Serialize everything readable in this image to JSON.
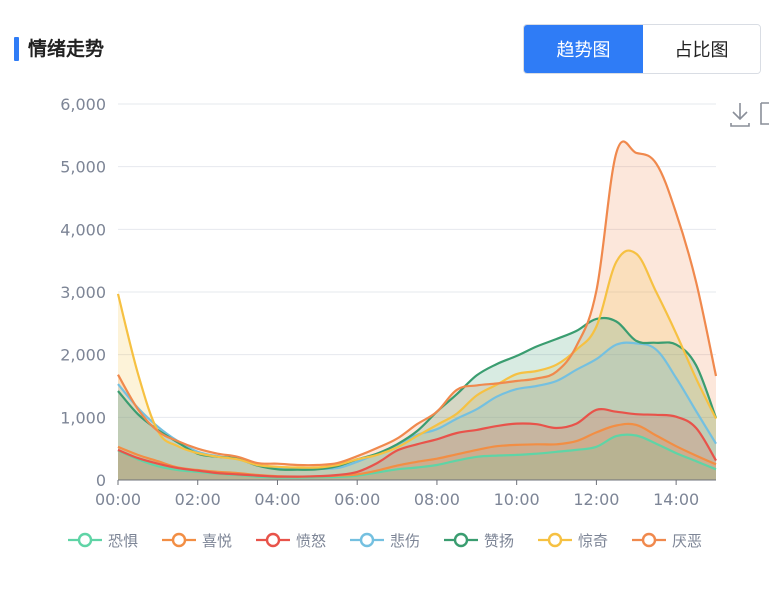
{
  "header": {
    "title": "情绪走势"
  },
  "toggle": {
    "trend_label": "趋势图",
    "ratio_label": "占比图"
  },
  "toolbox": {
    "icons": [
      "download-icon",
      "data-view-icon"
    ]
  },
  "chart_data": {
    "type": "area",
    "x": [
      "00:00",
      "00:30",
      "01:00",
      "01:30",
      "02:00",
      "02:30",
      "03:00",
      "03:30",
      "04:00",
      "04:30",
      "05:00",
      "05:30",
      "06:00",
      "06:30",
      "07:00",
      "07:30",
      "08:00",
      "08:30",
      "09:00",
      "09:30",
      "10:00",
      "10:30",
      "11:00",
      "11:30",
      "12:00",
      "12:30",
      "13:00",
      "13:30",
      "14:00",
      "14:30",
      "15:00"
    ],
    "xticks": [
      "00:00",
      "02:00",
      "04:00",
      "06:00",
      "08:00",
      "10:00",
      "12:00",
      "14:00"
    ],
    "ylim": [
      0,
      6000
    ],
    "yticks": [
      "0",
      "1,000",
      "2,000",
      "3,000",
      "4,000",
      "5,000",
      "6,000"
    ],
    "grid": true,
    "legend_position": "bottom",
    "series": [
      {
        "name": "恐惧",
        "color": "#5fd4a6",
        "values": [
          470,
          330,
          220,
          160,
          130,
          100,
          80,
          55,
          40,
          40,
          45,
          50,
          70,
          120,
          170,
          200,
          240,
          310,
          370,
          390,
          400,
          420,
          450,
          480,
          530,
          700,
          710,
          580,
          430,
          300,
          170
        ]
      },
      {
        "name": "喜悦",
        "color": "#f28e44",
        "values": [
          530,
          400,
          300,
          200,
          160,
          130,
          110,
          80,
          60,
          55,
          60,
          70,
          90,
          150,
          230,
          290,
          340,
          410,
          480,
          540,
          560,
          570,
          570,
          620,
          760,
          870,
          880,
          710,
          540,
          390,
          250
        ]
      },
      {
        "name": "愤怒",
        "color": "#e8534a",
        "values": [
          480,
          350,
          260,
          190,
          150,
          110,
          90,
          70,
          55,
          55,
          60,
          80,
          130,
          270,
          470,
          570,
          650,
          750,
          800,
          860,
          900,
          890,
          830,
          900,
          1120,
          1090,
          1050,
          1040,
          1010,
          830,
          310
        ]
      },
      {
        "name": "悲伤",
        "color": "#74c0e0",
        "values": [
          1530,
          1150,
          850,
          620,
          450,
          380,
          330,
          240,
          180,
          170,
          180,
          190,
          290,
          420,
          560,
          720,
          810,
          980,
          1130,
          1330,
          1450,
          1500,
          1580,
          1760,
          1930,
          2160,
          2180,
          2080,
          1630,
          1100,
          580
        ]
      },
      {
        "name": "赞扬",
        "color": "#3a9d70",
        "values": [
          1420,
          1050,
          800,
          600,
          420,
          370,
          340,
          230,
          170,
          165,
          170,
          220,
          330,
          420,
          570,
          780,
          1090,
          1370,
          1670,
          1850,
          1980,
          2130,
          2250,
          2380,
          2570,
          2530,
          2220,
          2190,
          2160,
          1830,
          990
        ]
      },
      {
        "name": "惊奇",
        "color": "#f6c142",
        "values": [
          2970,
          1700,
          780,
          540,
          430,
          370,
          330,
          240,
          210,
          200,
          200,
          240,
          330,
          400,
          520,
          700,
          880,
          1060,
          1350,
          1520,
          1690,
          1740,
          1840,
          2080,
          2450,
          3480,
          3610,
          3000,
          2340,
          1620,
          980
        ]
      },
      {
        "name": "厌恶",
        "color": "#f0894d",
        "values": [
          1680,
          1130,
          780,
          620,
          500,
          420,
          370,
          270,
          260,
          240,
          240,
          270,
          380,
          510,
          660,
          890,
          1090,
          1440,
          1510,
          1540,
          1580,
          1620,
          1730,
          2140,
          3020,
          5220,
          5220,
          5050,
          4260,
          3160,
          1660
        ]
      }
    ]
  }
}
